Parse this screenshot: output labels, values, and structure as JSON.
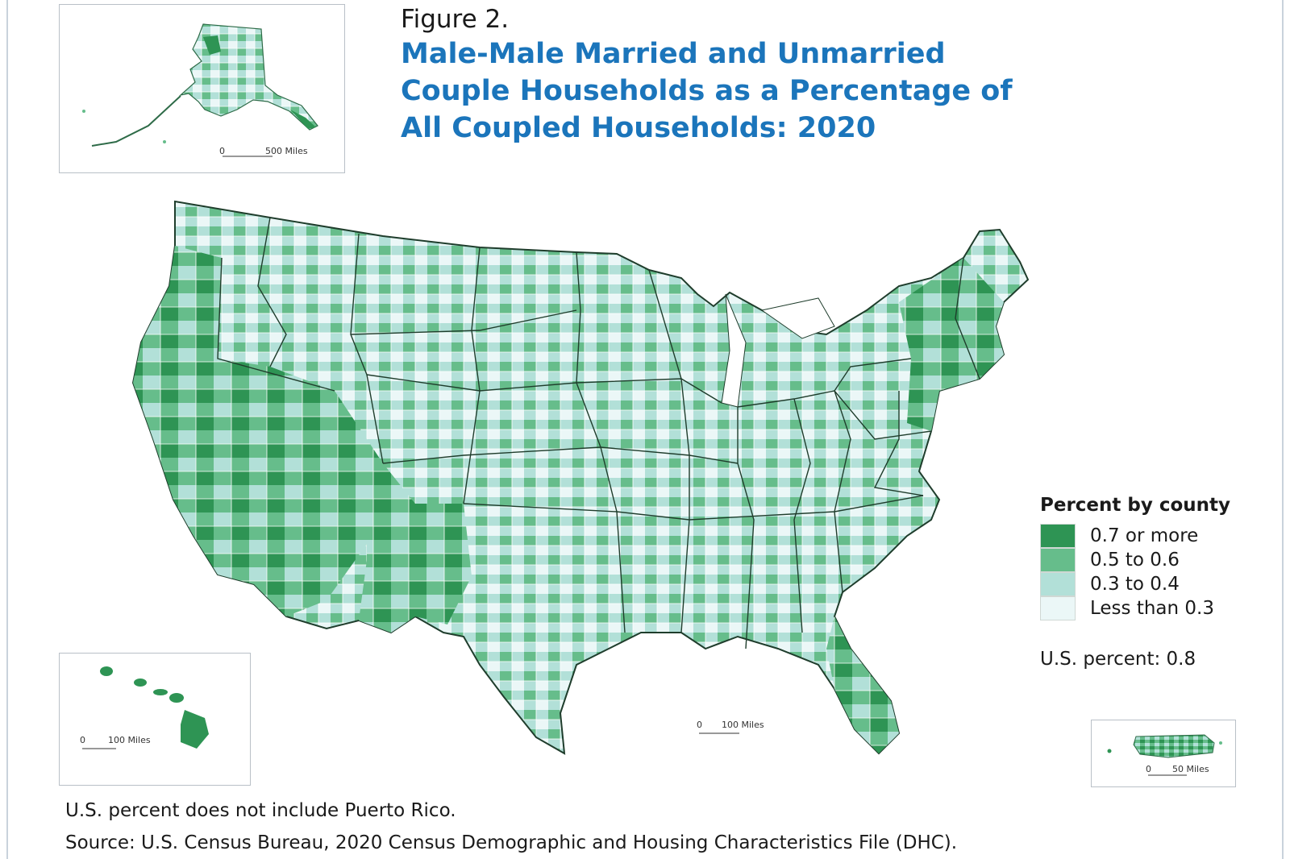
{
  "figure_label": "Figure 2.",
  "title_lines": [
    "Male-Male Married and Unmarried",
    "Couple Households as a Percentage of",
    "All Coupled Households: 2020"
  ],
  "insets": {
    "alaska": {
      "scale_zero": "0",
      "scale_label": "500 Miles"
    },
    "hawaii": {
      "scale_zero": "0",
      "scale_label": "100 Miles"
    },
    "puerto_rico": {
      "scale_zero": "0",
      "scale_label": "50 Miles"
    }
  },
  "main_map": {
    "scale_zero": "0",
    "scale_label": "100 Miles"
  },
  "legend": {
    "title": "Percent by county",
    "items": [
      {
        "label": "0.7 or more",
        "color": "#2e9454"
      },
      {
        "label": "0.5 to 0.6",
        "color": "#66bd8b"
      },
      {
        "label": "0.3 to 0.4",
        "color": "#b2e0d8"
      },
      {
        "label": "Less than 0.3",
        "color": "#ebf7f7"
      }
    ]
  },
  "us_percent": "U.S. percent: 0.8",
  "note": "U.S. percent does not include Puerto Rico.",
  "source": "Source: U.S. Census Bureau, 2020 Census Demographic and Housing Characteristics File (DHC)."
}
